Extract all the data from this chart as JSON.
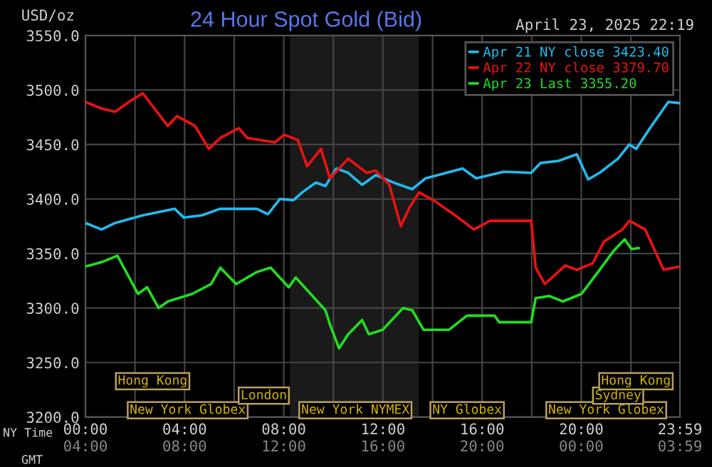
{
  "chart_data": {
    "type": "line",
    "title": "24 Hour Spot Gold (Bid)",
    "subtitle": "April 23, 2025 22:19",
    "ylabel": "USD/oz",
    "xlabel": "NY Time",
    "x2label": "GMT",
    "xlim": [
      0,
      23.98
    ],
    "xticks": [
      {
        "value": 0,
        "label": "00:00"
      },
      {
        "value": 2,
        "label": null
      },
      {
        "value": 4,
        "label": "04:00"
      },
      {
        "value": 6,
        "label": null
      },
      {
        "value": 8,
        "label": "08:00"
      },
      {
        "value": 10,
        "label": null
      },
      {
        "value": 12,
        "label": "12:00"
      },
      {
        "value": 14,
        "label": null
      },
      {
        "value": 16,
        "label": "16:00"
      },
      {
        "value": 18,
        "label": null
      },
      {
        "value": 20,
        "label": "20:00"
      },
      {
        "value": 22,
        "label": null
      },
      {
        "value": 23.98,
        "label": "23:59"
      }
    ],
    "x2lim": [
      "2025-04-23T04:00",
      "2025-04-24T03:59"
    ],
    "x2ticks": [
      {
        "value": "2025-04-23T04:00",
        "label": "04:00"
      },
      {
        "value": "2025-04-23T08:00",
        "label": "08:00"
      },
      {
        "value": "2025-04-23T12:00",
        "label": "12:00"
      },
      {
        "value": "2025-04-23T16:00",
        "label": "16:00"
      },
      {
        "value": "2025-04-23T20:00",
        "label": "20:00"
      },
      {
        "value": "2025-04-24T00:00",
        "label": "00:00"
      },
      {
        "value": "2025-04-24T03:59",
        "label": "03:59"
      }
    ],
    "ylim": [
      3200,
      3550
    ],
    "yticks": [
      {
        "value": 3200,
        "label": "3200.0"
      },
      {
        "value": 3250,
        "label": "3250.0"
      },
      {
        "value": 3300,
        "label": "3300.0"
      },
      {
        "value": 3350,
        "label": "3350.0"
      },
      {
        "value": 3400,
        "label": "3400.0"
      },
      {
        "value": 3450,
        "label": "3450.0"
      },
      {
        "value": 3500,
        "label": "3500.0"
      },
      {
        "value": 3550,
        "label": "3550.0"
      }
    ],
    "grid": true,
    "legend": "top right",
    "marker": "none",
    "line_style": "solid",
    "series": [
      {
        "name": "Apr 21 NY close 3423.40",
        "color": "#22bbee",
        "x": [
          0,
          0.65,
          1.2,
          2.31,
          3.6,
          3.97,
          4.7,
          5.42,
          6.91,
          7.36,
          7.84,
          8.39,
          8.74,
          9.29,
          9.68,
          10.12,
          10.6,
          11.16,
          11.71,
          12.44,
          13.18,
          13.72,
          15.21,
          15.76,
          16.87,
          17.98,
          18.35,
          19.08,
          19.82,
          20.28,
          20.74,
          21.48,
          21.94,
          22.22,
          22.77,
          23.51,
          23.95
        ],
        "values": [
          3378,
          3372,
          3378,
          3385,
          3391,
          3383,
          3385,
          3391,
          3391,
          3386,
          3400,
          3399,
          3406,
          3415,
          3412,
          3428,
          3424,
          3413,
          3422,
          3415,
          3409,
          3419,
          3428,
          3419,
          3425,
          3424,
          3433,
          3435,
          3441,
          3418,
          3424,
          3437,
          3450,
          3446,
          3465,
          3489,
          3488
        ]
      },
      {
        "name": "Apr 22 NY close 3379.70",
        "color": "#ee1111",
        "x": [
          0,
          0.65,
          1.2,
          1.75,
          2.31,
          2.58,
          3.32,
          3.69,
          4.42,
          4.98,
          5.44,
          6.18,
          6.53,
          7.65,
          8.02,
          8.57,
          8.94,
          9.5,
          9.86,
          10.6,
          11.34,
          11.71,
          12.26,
          12.72,
          13.09,
          13.46,
          14.1,
          15.03,
          15.67,
          16.32,
          17.98,
          18.16,
          18.53,
          19.36,
          19.82,
          20.46,
          20.92,
          21.66,
          21.94,
          22.58,
          23.32,
          23.96
        ],
        "values": [
          3489,
          3483,
          3480,
          3489,
          3497,
          3489,
          3467,
          3476,
          3467,
          3446,
          3456,
          3465,
          3456,
          3452,
          3459,
          3454,
          3430,
          3446,
          3419,
          3437,
          3424,
          3426,
          3413,
          3375,
          3393,
          3406,
          3398,
          3383,
          3372,
          3380,
          3380,
          3337,
          3322,
          3339,
          3335,
          3341,
          3361,
          3372,
          3380,
          3372,
          3335,
          3338
        ]
      },
      {
        "name": "Apr 23 Last 3355.20",
        "color": "#22dd22",
        "x": [
          0,
          0.65,
          1.29,
          2.12,
          2.49,
          2.95,
          3.32,
          4.31,
          5.07,
          5.44,
          6.08,
          6.91,
          7.47,
          8.2,
          8.48,
          9.68,
          9.86,
          10.23,
          10.6,
          11.16,
          11.43,
          11.99,
          12.81,
          13.18,
          13.64,
          14.66,
          15.39,
          16.5,
          16.69,
          17.98,
          18.16,
          18.71,
          19.26,
          20.01,
          20.74,
          21.29,
          21.75,
          22.03,
          22.31
        ],
        "values": [
          3338,
          3342,
          3348,
          3313,
          3319,
          3300,
          3306,
          3313,
          3322,
          3337,
          3322,
          3333,
          3337,
          3319,
          3328,
          3298,
          3285,
          3263,
          3276,
          3289,
          3276,
          3280,
          3300,
          3298,
          3280,
          3280,
          3293,
          3293,
          3287,
          3287,
          3309,
          3311,
          3306,
          3313,
          3335,
          3352,
          3363,
          3354,
          3355
        ]
      }
    ],
    "bands": [
      {
        "axis": "x",
        "from": 8.25,
        "to": 13.45,
        "color": "#1a1a1a"
      }
    ],
    "annotations": [
      "New York Globex",
      "New York NYMEX",
      "NY Globex",
      "New York Globex",
      "London",
      "Sydney",
      "Hong Kong",
      "Hong Kong"
    ]
  }
}
